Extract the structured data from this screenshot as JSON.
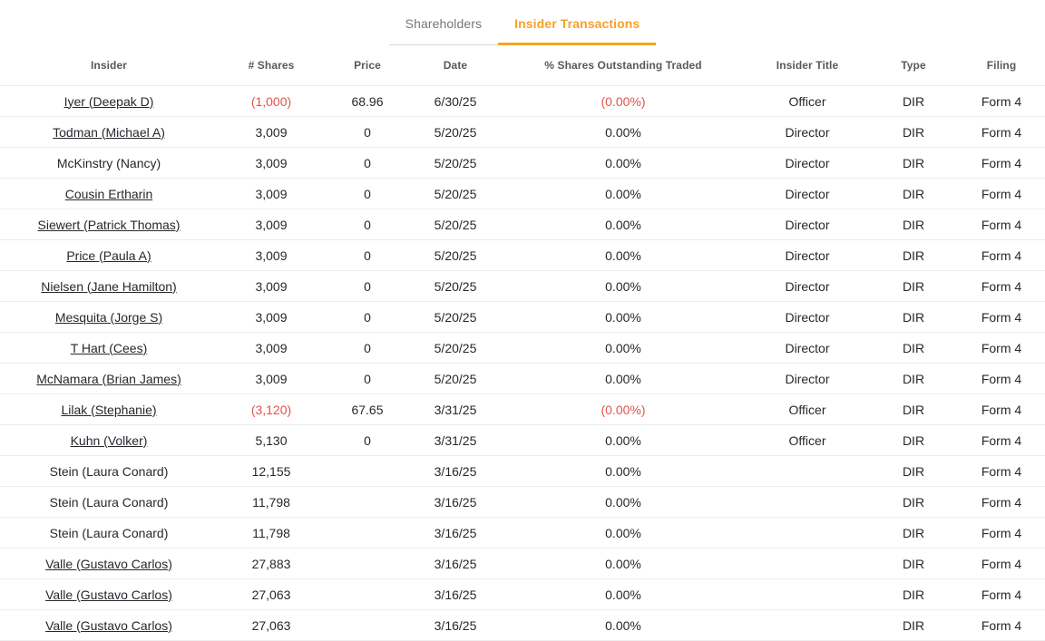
{
  "tabs": [
    {
      "label": "Shareholders",
      "active": false
    },
    {
      "label": "Insider Transactions",
      "active": true
    }
  ],
  "colors": {
    "accent_orange": "#f5a623",
    "negative_red": "#e2544b",
    "inactive_tab_gray": "#75787b"
  },
  "table": {
    "columns": [
      "Insider",
      "# Shares",
      "Price",
      "Date",
      "% Shares Outstanding Traded",
      "Insider Title",
      "Type",
      "Filing"
    ],
    "rows": [
      {
        "insider": "Iyer (Deepak D)",
        "link": true,
        "shares": "(1,000)",
        "shares_negative": true,
        "price": "68.96",
        "date": "6/30/25",
        "pct": "(0.00%)",
        "pct_negative": true,
        "title": "Officer",
        "type": "DIR",
        "filing": "Form 4"
      },
      {
        "insider": "Todman (Michael A)",
        "link": true,
        "shares": "3,009",
        "shares_negative": false,
        "price": "0",
        "date": "5/20/25",
        "pct": "0.00%",
        "pct_negative": false,
        "title": "Director",
        "type": "DIR",
        "filing": "Form 4"
      },
      {
        "insider": "McKinstry (Nancy)",
        "link": false,
        "shares": "3,009",
        "shares_negative": false,
        "price": "0",
        "date": "5/20/25",
        "pct": "0.00%",
        "pct_negative": false,
        "title": "Director",
        "type": "DIR",
        "filing": "Form 4"
      },
      {
        "insider": "Cousin Ertharin",
        "link": true,
        "shares": "3,009",
        "shares_negative": false,
        "price": "0",
        "date": "5/20/25",
        "pct": "0.00%",
        "pct_negative": false,
        "title": "Director",
        "type": "DIR",
        "filing": "Form 4"
      },
      {
        "insider": "Siewert (Patrick Thomas)",
        "link": true,
        "shares": "3,009",
        "shares_negative": false,
        "price": "0",
        "date": "5/20/25",
        "pct": "0.00%",
        "pct_negative": false,
        "title": "Director",
        "type": "DIR",
        "filing": "Form 4"
      },
      {
        "insider": "Price (Paula A)",
        "link": true,
        "shares": "3,009",
        "shares_negative": false,
        "price": "0",
        "date": "5/20/25",
        "pct": "0.00%",
        "pct_negative": false,
        "title": "Director",
        "type": "DIR",
        "filing": "Form 4"
      },
      {
        "insider": "Nielsen (Jane Hamilton)",
        "link": true,
        "shares": "3,009",
        "shares_negative": false,
        "price": "0",
        "date": "5/20/25",
        "pct": "0.00%",
        "pct_negative": false,
        "title": "Director",
        "type": "DIR",
        "filing": "Form 4"
      },
      {
        "insider": "Mesquita (Jorge S)",
        "link": true,
        "shares": "3,009",
        "shares_negative": false,
        "price": "0",
        "date": "5/20/25",
        "pct": "0.00%",
        "pct_negative": false,
        "title": "Director",
        "type": "DIR",
        "filing": "Form 4"
      },
      {
        "insider": "T Hart (Cees)",
        "link": true,
        "shares": "3,009",
        "shares_negative": false,
        "price": "0",
        "date": "5/20/25",
        "pct": "0.00%",
        "pct_negative": false,
        "title": "Director",
        "type": "DIR",
        "filing": "Form 4"
      },
      {
        "insider": "McNamara (Brian James)",
        "link": true,
        "shares": "3,009",
        "shares_negative": false,
        "price": "0",
        "date": "5/20/25",
        "pct": "0.00%",
        "pct_negative": false,
        "title": "Director",
        "type": "DIR",
        "filing": "Form 4"
      },
      {
        "insider": "Lilak (Stephanie)",
        "link": true,
        "shares": "(3,120)",
        "shares_negative": true,
        "price": "67.65",
        "date": "3/31/25",
        "pct": "(0.00%)",
        "pct_negative": true,
        "title": "Officer",
        "type": "DIR",
        "filing": "Form 4"
      },
      {
        "insider": "Kuhn (Volker)",
        "link": true,
        "shares": "5,130",
        "shares_negative": false,
        "price": "0",
        "date": "3/31/25",
        "pct": "0.00%",
        "pct_negative": false,
        "title": "Officer",
        "type": "DIR",
        "filing": "Form 4"
      },
      {
        "insider": "Stein (Laura Conard)",
        "link": false,
        "shares": "12,155",
        "shares_negative": false,
        "price": "",
        "date": "3/16/25",
        "pct": "0.00%",
        "pct_negative": false,
        "title": "",
        "type": "DIR",
        "filing": "Form 4"
      },
      {
        "insider": "Stein (Laura Conard)",
        "link": false,
        "shares": "11,798",
        "shares_negative": false,
        "price": "",
        "date": "3/16/25",
        "pct": "0.00%",
        "pct_negative": false,
        "title": "",
        "type": "DIR",
        "filing": "Form 4"
      },
      {
        "insider": "Stein (Laura Conard)",
        "link": false,
        "shares": "11,798",
        "shares_negative": false,
        "price": "",
        "date": "3/16/25",
        "pct": "0.00%",
        "pct_negative": false,
        "title": "",
        "type": "DIR",
        "filing": "Form 4"
      },
      {
        "insider": "Valle (Gustavo Carlos)",
        "link": true,
        "shares": "27,883",
        "shares_negative": false,
        "price": "",
        "date": "3/16/25",
        "pct": "0.00%",
        "pct_negative": false,
        "title": "",
        "type": "DIR",
        "filing": "Form 4"
      },
      {
        "insider": "Valle (Gustavo Carlos)",
        "link": true,
        "shares": "27,063",
        "shares_negative": false,
        "price": "",
        "date": "3/16/25",
        "pct": "0.00%",
        "pct_negative": false,
        "title": "",
        "type": "DIR",
        "filing": "Form 4"
      },
      {
        "insider": "Valle (Gustavo Carlos)",
        "link": true,
        "shares": "27,063",
        "shares_negative": false,
        "price": "",
        "date": "3/16/25",
        "pct": "0.00%",
        "pct_negative": false,
        "title": "",
        "type": "DIR",
        "filing": "Form 4"
      }
    ]
  }
}
